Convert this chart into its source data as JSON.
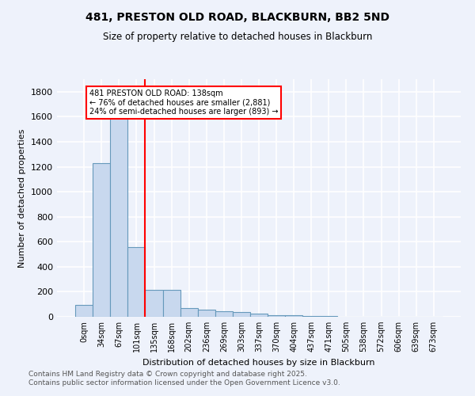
{
  "title_line1": "481, PRESTON OLD ROAD, BLACKBURN, BB2 5ND",
  "title_line2": "Size of property relative to detached houses in Blackburn",
  "xlabel": "Distribution of detached houses by size in Blackburn",
  "ylabel": "Number of detached properties",
  "categories": [
    "0sqm",
    "34sqm",
    "67sqm",
    "101sqm",
    "135sqm",
    "168sqm",
    "202sqm",
    "236sqm",
    "269sqm",
    "303sqm",
    "337sqm",
    "370sqm",
    "404sqm",
    "437sqm",
    "471sqm",
    "505sqm",
    "538sqm",
    "572sqm",
    "606sqm",
    "639sqm",
    "673sqm"
  ],
  "values": [
    95,
    1230,
    1680,
    555,
    215,
    215,
    70,
    55,
    45,
    35,
    25,
    15,
    10,
    8,
    5,
    3,
    2,
    2,
    1,
    0,
    0
  ],
  "bar_color": "#c8d8ee",
  "bar_edge_color": "#6699bb",
  "vline_x": 3.5,
  "vline_color": "red",
  "annotation_text": "481 PRESTON OLD ROAD: 138sqm\n← 76% of detached houses are smaller (2,881)\n24% of semi-detached houses are larger (893) →",
  "annotation_box_color": "white",
  "annotation_box_edge": "red",
  "ylim": [
    0,
    1900
  ],
  "yticks": [
    0,
    200,
    400,
    600,
    800,
    1000,
    1200,
    1400,
    1600,
    1800
  ],
  "background_color": "#eef2fb",
  "grid_color": "white",
  "footer_line1": "Contains HM Land Registry data © Crown copyright and database right 2025.",
  "footer_line2": "Contains public sector information licensed under the Open Government Licence v3.0."
}
